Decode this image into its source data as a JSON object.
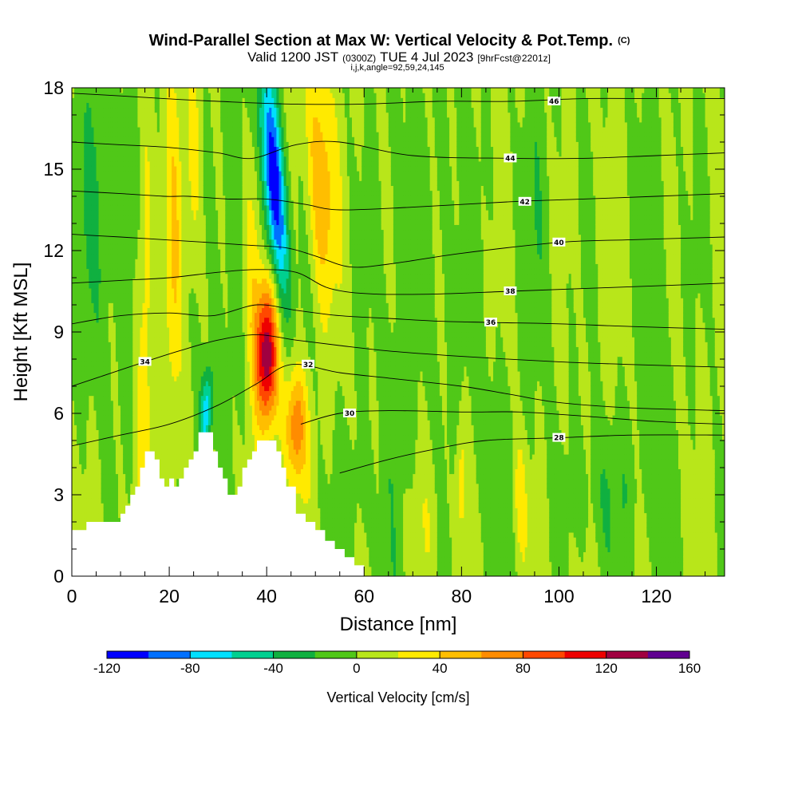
{
  "chart_data": {
    "type": "heatmap",
    "title": "Wind-Parallel Section at Max W: Vertical Velocity & Pot.Temp.",
    "title_mark": "(C)",
    "subtitle": {
      "valid": "Valid 1200 JST",
      "utc": "(0300Z)",
      "date": "TUE 4 Jul 2023",
      "forecast": "[9hrFcst@2201z]"
    },
    "params": "i,j,k,angle=92,59,24,145",
    "xlabel": "Distance [nm]",
    "ylabel": "Height [Kft MSL]",
    "xlim": [
      0,
      134
    ],
    "ylim": [
      0,
      18
    ],
    "xticks": [
      0,
      20,
      40,
      60,
      80,
      100,
      120
    ],
    "yticks": [
      0,
      3,
      6,
      9,
      12,
      15,
      18
    ],
    "colorbar": {
      "label": "Vertical Velocity [cm/s]",
      "ticks": [
        -120,
        -80,
        -40,
        0,
        40,
        80,
        120,
        160
      ],
      "min": -120,
      "max": 160,
      "step": 20,
      "colors": [
        "#0000ff",
        "#0070ff",
        "#00e0ff",
        "#00d090",
        "#10b040",
        "#50c818",
        "#b8e61a",
        "#ffea00",
        "#ffbe00",
        "#ff8c00",
        "#ff4800",
        "#ee0000",
        "#a00040",
        "#600090"
      ]
    },
    "w_features": [
      {
        "x": 41.5,
        "z": 14.5,
        "amp": -130,
        "sx": 1.6,
        "sz": 3.0,
        "tilt": -0.4
      },
      {
        "x": 27.5,
        "z": 6.0,
        "amp": -75,
        "sx": 1.0,
        "sz": 1.2,
        "tilt": 0.3
      },
      {
        "x": 40.0,
        "z": 8.2,
        "amp": 135,
        "sx": 1.6,
        "sz": 1.8,
        "tilt": 0
      },
      {
        "x": 46.0,
        "z": 5.5,
        "amp": 75,
        "sx": 1.6,
        "sz": 1.5,
        "tilt": 0
      },
      {
        "x": 51.0,
        "z": 14.5,
        "amp": 55,
        "sx": 2.0,
        "sz": 3.0,
        "tilt": -0.2
      },
      {
        "x": 15.0,
        "z": 10.0,
        "amp": 35,
        "sx": 1.2,
        "sz": 6.0,
        "tilt": 0
      },
      {
        "x": 21.0,
        "z": 12.0,
        "amp": 32,
        "sx": 1.2,
        "sz": 5.0,
        "tilt": 0
      },
      {
        "x": 25.0,
        "z": 15.0,
        "amp": 30,
        "sx": 1.2,
        "sz": 3.0,
        "tilt": 0
      },
      {
        "x": 37.0,
        "z": 12.0,
        "amp": 40,
        "sx": 1.5,
        "sz": 3.5,
        "tilt": 0
      },
      {
        "x": 80.0,
        "z": 3.5,
        "amp": 35,
        "sx": 0.8,
        "sz": 1.8,
        "tilt": 0
      },
      {
        "x": 92.0,
        "z": 3.0,
        "amp": 28,
        "sx": 1.0,
        "sz": 1.5,
        "tilt": 0
      },
      {
        "x": 6.0,
        "z": 13.5,
        "amp": -22,
        "sx": 5.0,
        "sz": 5.0,
        "tilt": 0
      },
      {
        "x": 33.0,
        "z": 13.0,
        "amp": -22,
        "sx": 2.5,
        "sz": 5.0,
        "tilt": 0
      },
      {
        "x": 67.0,
        "z": 8.0,
        "amp": -16,
        "sx": 3.0,
        "sz": 9.0,
        "tilt": 0
      },
      {
        "x": 78.0,
        "z": 12.0,
        "amp": -14,
        "sx": 3.0,
        "sz": 6.0,
        "tilt": 0
      },
      {
        "x": 96.0,
        "z": 13.0,
        "amp": -14,
        "sx": 3.0,
        "sz": 5.0,
        "tilt": 0
      },
      {
        "x": 110.0,
        "z": 3.0,
        "amp": -18,
        "sx": 6.0,
        "sz": 2.0,
        "tilt": 0
      },
      {
        "x": 120.0,
        "z": 11.0,
        "amp": -12,
        "sx": 3.0,
        "sz": 6.0,
        "tilt": 0
      },
      {
        "x": 58.0,
        "z": 3.0,
        "amp": -15,
        "sx": 3.0,
        "sz": 2.0,
        "tilt": 0
      },
      {
        "x": 86.0,
        "z": 4.0,
        "amp": -16,
        "sx": 3.0,
        "sz": 3.0,
        "tilt": 0
      },
      {
        "x": 72.0,
        "z": 2.0,
        "amp": 10,
        "sx": 4.0,
        "sz": 2.0,
        "tilt": 0
      }
    ],
    "theta_contours": [
      {
        "level": 28,
        "label": "28",
        "points": [
          [
            55,
            3.8
          ],
          [
            65,
            4.3
          ],
          [
            75,
            4.7
          ],
          [
            85,
            5.0
          ],
          [
            100,
            5.1
          ],
          [
            115,
            5.2
          ],
          [
            134,
            5.2
          ]
        ],
        "label_at": [
          100,
          5.1
        ]
      },
      {
        "level": 30,
        "label": "30",
        "points": [
          [
            47,
            5.6
          ],
          [
            55,
            6.0
          ],
          [
            65,
            6.1
          ],
          [
            80,
            6.05
          ],
          [
            92,
            6.05
          ],
          [
            105,
            5.9
          ],
          [
            120,
            5.7
          ],
          [
            134,
            5.6
          ]
        ],
        "label_at": [
          57,
          6.0
        ]
      },
      {
        "level": 32,
        "label": "32",
        "points": [
          [
            0,
            4.8
          ],
          [
            10,
            5.2
          ],
          [
            20,
            5.6
          ],
          [
            30,
            6.3
          ],
          [
            38,
            7.1
          ],
          [
            45,
            7.8
          ],
          [
            55,
            7.5
          ],
          [
            65,
            7.3
          ],
          [
            80,
            7.0
          ],
          [
            90,
            6.7
          ],
          [
            100,
            6.4
          ],
          [
            115,
            6.2
          ],
          [
            134,
            6.1
          ]
        ],
        "label_at": [
          48.5,
          7.8
        ]
      },
      {
        "level": 34,
        "label": "34",
        "points": [
          [
            0,
            7.0
          ],
          [
            10,
            7.6
          ],
          [
            15,
            7.9
          ],
          [
            22,
            8.3
          ],
          [
            30,
            8.7
          ],
          [
            38,
            8.9
          ],
          [
            46,
            8.7
          ],
          [
            55,
            8.5
          ],
          [
            65,
            8.3
          ],
          [
            80,
            8.1
          ],
          [
            100,
            7.9
          ],
          [
            115,
            7.8
          ],
          [
            134,
            7.7
          ]
        ],
        "label_at": [
          15,
          7.9
        ]
      },
      {
        "level": 36,
        "label": "36",
        "points": [
          [
            0,
            9.3
          ],
          [
            10,
            9.6
          ],
          [
            20,
            9.7
          ],
          [
            29,
            9.6
          ],
          [
            38,
            10.0
          ],
          [
            46,
            9.8
          ],
          [
            55,
            9.6
          ],
          [
            65,
            9.5
          ],
          [
            75,
            9.4
          ],
          [
            86,
            9.35
          ],
          [
            100,
            9.3
          ],
          [
            115,
            9.2
          ],
          [
            134,
            9.1
          ]
        ],
        "label_at": [
          86,
          9.35
        ]
      },
      {
        "level": 38,
        "label": "38",
        "points": [
          [
            0,
            10.8
          ],
          [
            10,
            10.9
          ],
          [
            20,
            11.0
          ],
          [
            30,
            11.2
          ],
          [
            38,
            11.3
          ],
          [
            46,
            11.2
          ],
          [
            53,
            10.6
          ],
          [
            62,
            10.4
          ],
          [
            75,
            10.4
          ],
          [
            90,
            10.5
          ],
          [
            105,
            10.6
          ],
          [
            120,
            10.7
          ],
          [
            134,
            10.8
          ]
        ],
        "label_at": [
          90,
          10.5
        ]
      },
      {
        "level": 40,
        "label": "40",
        "points": [
          [
            0,
            12.6
          ],
          [
            10,
            12.5
          ],
          [
            19,
            12.4
          ],
          [
            28,
            12.3
          ],
          [
            36,
            12.2
          ],
          [
            44,
            12.1
          ],
          [
            50,
            11.8
          ],
          [
            57,
            11.4
          ],
          [
            65,
            11.5
          ],
          [
            80,
            11.9
          ],
          [
            100,
            12.3
          ],
          [
            115,
            12.4
          ],
          [
            134,
            12.5
          ]
        ],
        "label_at": [
          100,
          12.3
        ]
      },
      {
        "level": 42,
        "label": "42",
        "points": [
          [
            0,
            14.2
          ],
          [
            10,
            14.1
          ],
          [
            19,
            14.0
          ],
          [
            24,
            14.0
          ],
          [
            32,
            13.9
          ],
          [
            40,
            13.9
          ],
          [
            48,
            13.7
          ],
          [
            55,
            13.5
          ],
          [
            70,
            13.6
          ],
          [
            90,
            13.8
          ],
          [
            105,
            13.9
          ],
          [
            120,
            14.0
          ],
          [
            134,
            14.1
          ]
        ],
        "label_at": [
          93,
          13.8
        ]
      },
      {
        "level": 44,
        "label": "44",
        "points": [
          [
            0,
            16.0
          ],
          [
            10,
            15.9
          ],
          [
            20,
            15.8
          ],
          [
            30,
            15.6
          ],
          [
            37,
            15.4
          ],
          [
            46,
            15.9
          ],
          [
            55,
            16.0
          ],
          [
            70,
            15.5
          ],
          [
            90,
            15.4
          ],
          [
            105,
            15.4
          ],
          [
            120,
            15.5
          ],
          [
            134,
            15.6
          ]
        ],
        "label_at": [
          90,
          15.4
        ]
      },
      {
        "level": 46,
        "label": "46",
        "points": [
          [
            0,
            17.8
          ],
          [
            10,
            17.7
          ],
          [
            19,
            17.6
          ],
          [
            30,
            17.5
          ],
          [
            45,
            17.4
          ],
          [
            60,
            17.4
          ],
          [
            75,
            17.5
          ],
          [
            90,
            17.5
          ],
          [
            105,
            17.6
          ],
          [
            120,
            17.6
          ],
          [
            134,
            17.6
          ]
        ],
        "label_at": [
          99,
          17.5
        ]
      }
    ],
    "terrain": [
      [
        0,
        1.7
      ],
      [
        3,
        1.7
      ],
      [
        3,
        2.0
      ],
      [
        10,
        2.0
      ],
      [
        10,
        2.3
      ],
      [
        11,
        2.3
      ],
      [
        11,
        2.6
      ],
      [
        12,
        2.6
      ],
      [
        12,
        3.0
      ],
      [
        13,
        3.0
      ],
      [
        13,
        3.3
      ],
      [
        14,
        3.3
      ],
      [
        14,
        4.0
      ],
      [
        15,
        4.0
      ],
      [
        15,
        4.6
      ],
      [
        17,
        4.6
      ],
      [
        17,
        4.3
      ],
      [
        18,
        4.3
      ],
      [
        18,
        3.6
      ],
      [
        19,
        3.6
      ],
      [
        19,
        3.3
      ],
      [
        20,
        3.3
      ],
      [
        20,
        3.6
      ],
      [
        21,
        3.6
      ],
      [
        21,
        3.3
      ],
      [
        22,
        3.3
      ],
      [
        22,
        3.6
      ],
      [
        23,
        3.6
      ],
      [
        23,
        4.0
      ],
      [
        24,
        4.0
      ],
      [
        24,
        4.3
      ],
      [
        25,
        4.3
      ],
      [
        25,
        4.6
      ],
      [
        26,
        4.6
      ],
      [
        26,
        5.3
      ],
      [
        29,
        5.3
      ],
      [
        29,
        4.6
      ],
      [
        30,
        4.6
      ],
      [
        30,
        4.0
      ],
      [
        31,
        4.0
      ],
      [
        31,
        3.6
      ],
      [
        32,
        3.6
      ],
      [
        32,
        3.0
      ],
      [
        34,
        3.0
      ],
      [
        34,
        3.3
      ],
      [
        35,
        3.3
      ],
      [
        35,
        4.0
      ],
      [
        36,
        4.0
      ],
      [
        36,
        4.3
      ],
      [
        37,
        4.3
      ],
      [
        37,
        4.6
      ],
      [
        38,
        4.6
      ],
      [
        38,
        5.0
      ],
      [
        42,
        5.0
      ],
      [
        42,
        4.6
      ],
      [
        43,
        4.6
      ],
      [
        43,
        4.0
      ],
      [
        44,
        4.0
      ],
      [
        44,
        3.3
      ],
      [
        46,
        3.3
      ],
      [
        46,
        2.3
      ],
      [
        48,
        2.3
      ],
      [
        48,
        2.0
      ],
      [
        50,
        2.0
      ],
      [
        50,
        1.7
      ],
      [
        52,
        1.7
      ],
      [
        52,
        1.3
      ],
      [
        54,
        1.3
      ],
      [
        54,
        1.0
      ],
      [
        56,
        1.0
      ],
      [
        56,
        0.7
      ],
      [
        58,
        0.7
      ],
      [
        58,
        0.4
      ],
      [
        60,
        0.4
      ],
      [
        60,
        0
      ],
      [
        0,
        0
      ]
    ]
  }
}
